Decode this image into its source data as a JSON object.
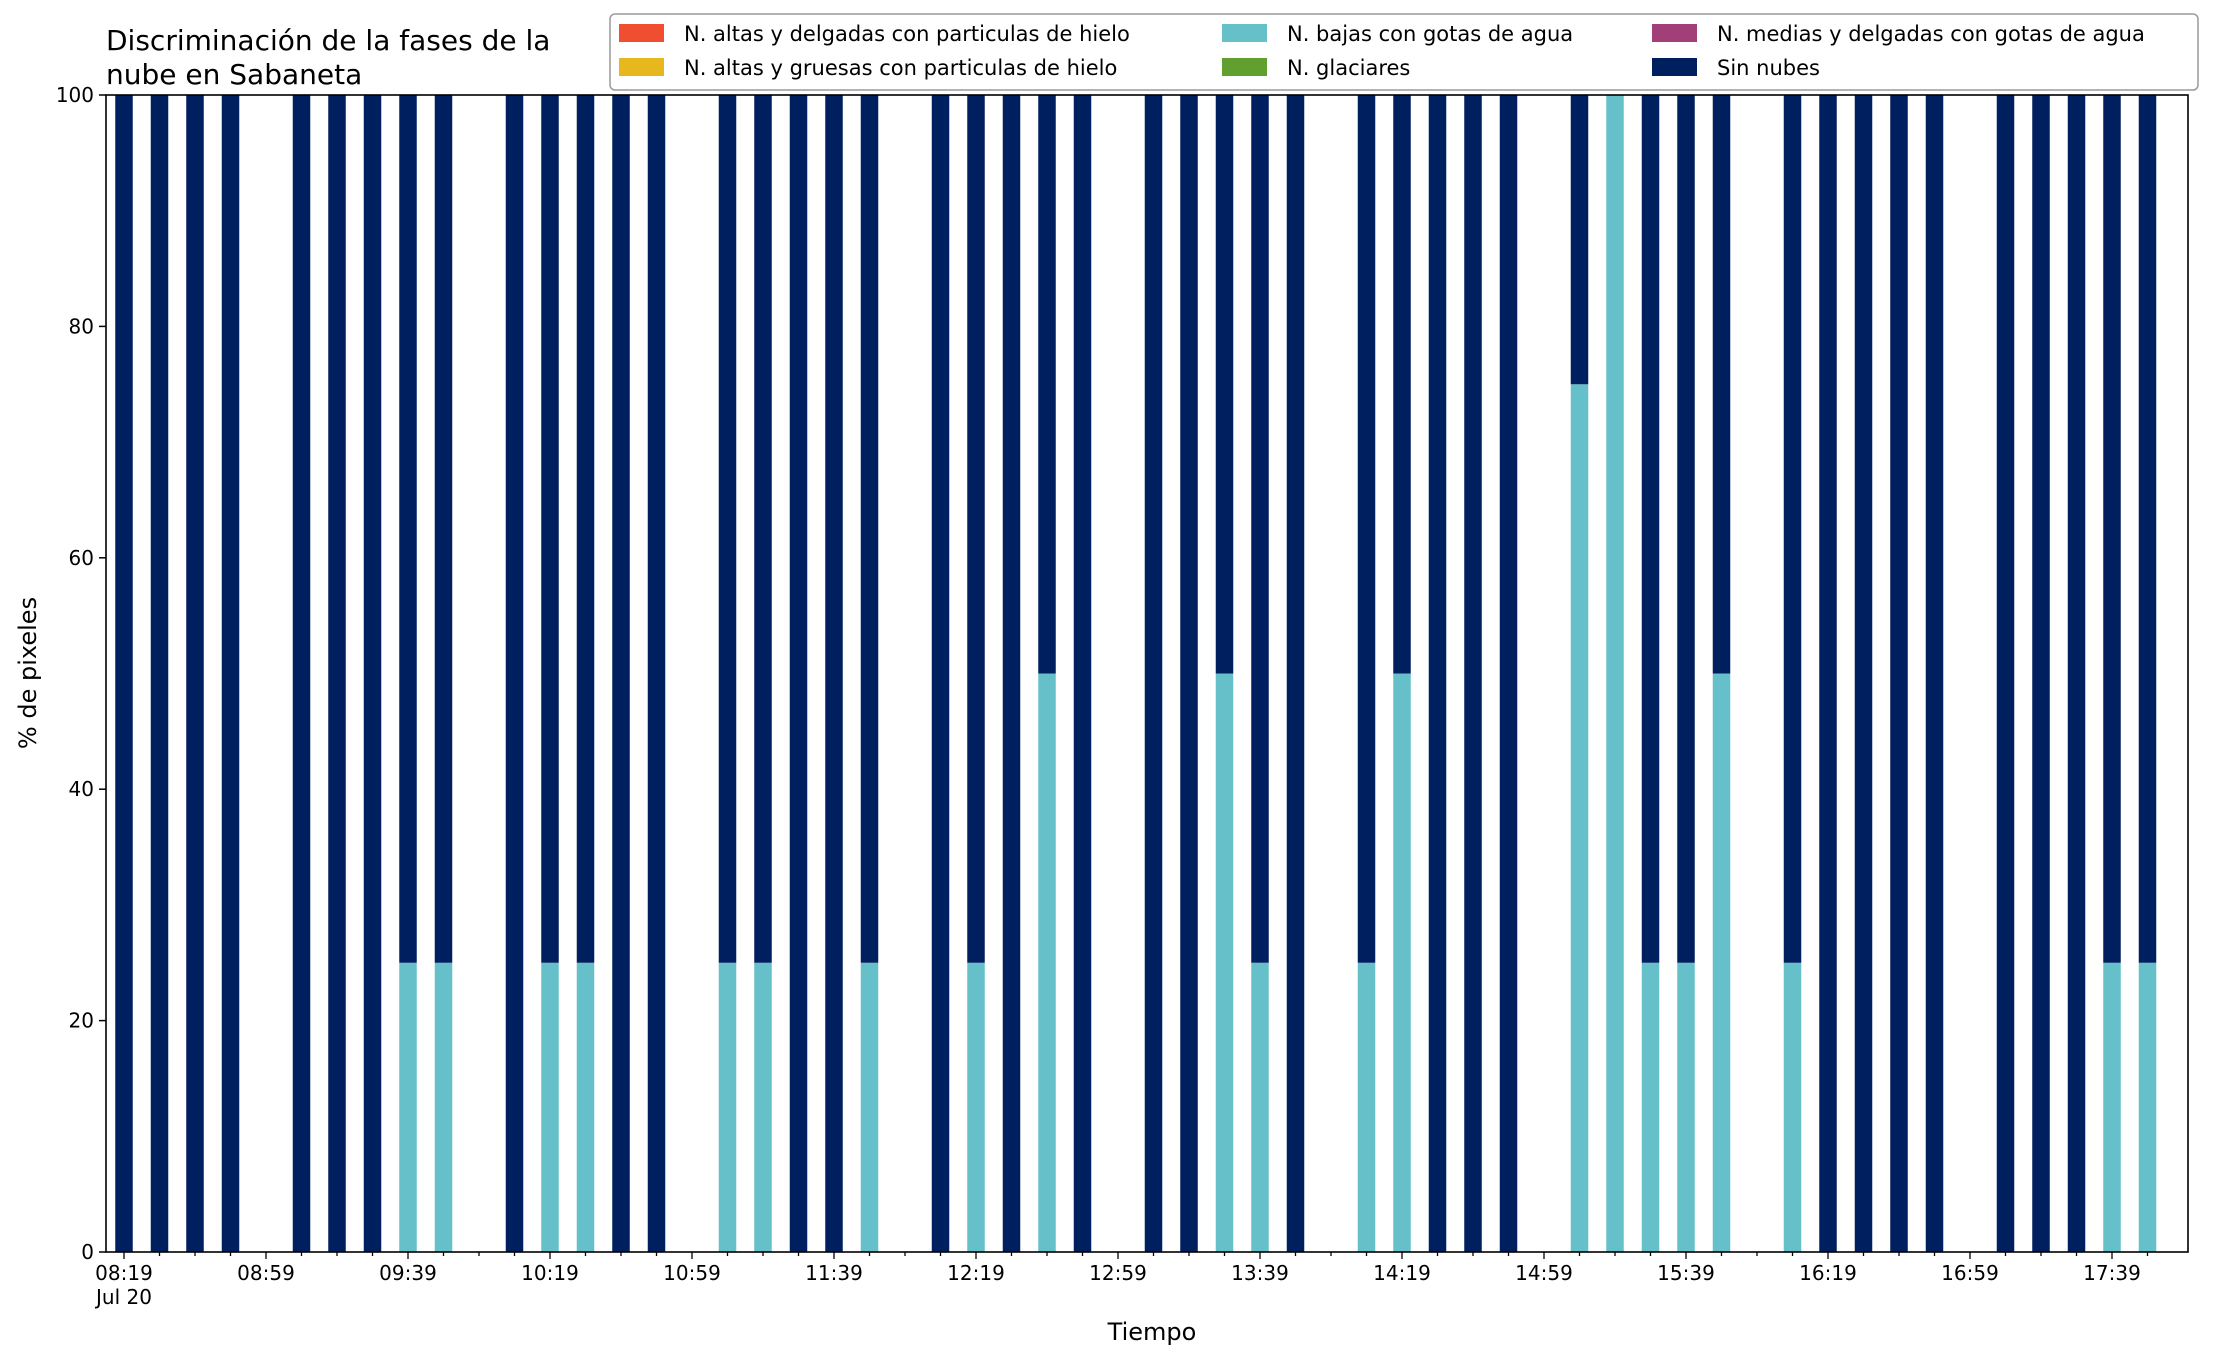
{
  "chart_data": {
    "type": "bar",
    "stacked": true,
    "title_line1": "Discriminación de la fases de la",
    "title_line2": "nube en Sabaneta",
    "xlabel": "Tiempo",
    "ylabel": "% de pixeles",
    "ylim": [
      0,
      100
    ],
    "yticks": [
      "0",
      "20",
      "40",
      "60",
      "80",
      "100"
    ],
    "grid": false,
    "legend_position": "top-right",
    "x_start": "08:19",
    "slot_minutes": 10,
    "slot_count": 58,
    "xtick_labels": [
      {
        "slot": 0,
        "label": "08:19",
        "sub": "Jul 20"
      },
      {
        "slot": 4,
        "label": "08:59"
      },
      {
        "slot": 8,
        "label": "09:39"
      },
      {
        "slot": 12,
        "label": "10:19"
      },
      {
        "slot": 16,
        "label": "10:59"
      },
      {
        "slot": 20,
        "label": "11:39"
      },
      {
        "slot": 24,
        "label": "12:19"
      },
      {
        "slot": 28,
        "label": "12:59"
      },
      {
        "slot": 32,
        "label": "13:39"
      },
      {
        "slot": 36,
        "label": "14:19"
      },
      {
        "slot": 40,
        "label": "14:59"
      },
      {
        "slot": 44,
        "label": "15:39"
      },
      {
        "slot": 48,
        "label": "16:19"
      },
      {
        "slot": 52,
        "label": "16:59"
      },
      {
        "slot": 56,
        "label": "17:39"
      }
    ],
    "series": [
      {
        "name": "N. altas y delgadas con particulas de hielo",
        "color": "#f04e30"
      },
      {
        "name": "N. altas y gruesas con particulas de hielo",
        "color": "#e6b81e"
      },
      {
        "name": "N. bajas con gotas de agua",
        "color": "#65c0ca"
      },
      {
        "name": "N. glaciares",
        "color": "#61a02f"
      },
      {
        "name": "N. medias y delgadas con gotas de agua",
        "color": "#a23f78"
      },
      {
        "name": "Sin nubes",
        "color": "#001f5f"
      }
    ],
    "bars": [
      {
        "slot": 0,
        "bajas": 0,
        "sin_nubes": 100
      },
      {
        "slot": 1,
        "bajas": 0,
        "sin_nubes": 100
      },
      {
        "slot": 2,
        "bajas": 0,
        "sin_nubes": 100
      },
      {
        "slot": 3,
        "bajas": 0,
        "sin_nubes": 100
      },
      {
        "slot": 5,
        "bajas": 0,
        "sin_nubes": 100
      },
      {
        "slot": 6,
        "bajas": 0,
        "sin_nubes": 100
      },
      {
        "slot": 7,
        "bajas": 0,
        "sin_nubes": 100
      },
      {
        "slot": 8,
        "bajas": 25,
        "sin_nubes": 75
      },
      {
        "slot": 9,
        "bajas": 25,
        "sin_nubes": 75
      },
      {
        "slot": 11,
        "bajas": 0,
        "sin_nubes": 100
      },
      {
        "slot": 12,
        "bajas": 25,
        "sin_nubes": 75
      },
      {
        "slot": 13,
        "bajas": 25,
        "sin_nubes": 75
      },
      {
        "slot": 14,
        "bajas": 0,
        "sin_nubes": 100
      },
      {
        "slot": 15,
        "bajas": 0,
        "sin_nubes": 100
      },
      {
        "slot": 17,
        "bajas": 25,
        "sin_nubes": 75
      },
      {
        "slot": 18,
        "bajas": 25,
        "sin_nubes": 75
      },
      {
        "slot": 19,
        "bajas": 0,
        "sin_nubes": 100
      },
      {
        "slot": 20,
        "bajas": 0,
        "sin_nubes": 100
      },
      {
        "slot": 21,
        "bajas": 25,
        "sin_nubes": 75
      },
      {
        "slot": 23,
        "bajas": 0,
        "sin_nubes": 100
      },
      {
        "slot": 24,
        "bajas": 25,
        "sin_nubes": 75
      },
      {
        "slot": 25,
        "bajas": 0,
        "sin_nubes": 100
      },
      {
        "slot": 26,
        "bajas": 50,
        "sin_nubes": 50
      },
      {
        "slot": 27,
        "bajas": 0,
        "sin_nubes": 100
      },
      {
        "slot": 29,
        "bajas": 0,
        "sin_nubes": 100
      },
      {
        "slot": 30,
        "bajas": 0,
        "sin_nubes": 100
      },
      {
        "slot": 31,
        "bajas": 50,
        "sin_nubes": 50
      },
      {
        "slot": 32,
        "bajas": 25,
        "sin_nubes": 75
      },
      {
        "slot": 33,
        "bajas": 0,
        "sin_nubes": 100
      },
      {
        "slot": 35,
        "bajas": 25,
        "sin_nubes": 75
      },
      {
        "slot": 36,
        "bajas": 50,
        "sin_nubes": 50
      },
      {
        "slot": 37,
        "bajas": 0,
        "sin_nubes": 100
      },
      {
        "slot": 38,
        "bajas": 0,
        "sin_nubes": 100
      },
      {
        "slot": 39,
        "bajas": 0,
        "sin_nubes": 100
      },
      {
        "slot": 41,
        "bajas": 75,
        "sin_nubes": 25
      },
      {
        "slot": 42,
        "bajas": 100,
        "sin_nubes": 0
      },
      {
        "slot": 43,
        "bajas": 25,
        "sin_nubes": 75
      },
      {
        "slot": 44,
        "bajas": 25,
        "sin_nubes": 75
      },
      {
        "slot": 45,
        "bajas": 50,
        "sin_nubes": 50
      },
      {
        "slot": 47,
        "bajas": 25,
        "sin_nubes": 75
      },
      {
        "slot": 48,
        "bajas": 0,
        "sin_nubes": 100
      },
      {
        "slot": 49,
        "bajas": 0,
        "sin_nubes": 100
      },
      {
        "slot": 50,
        "bajas": 0,
        "sin_nubes": 100
      },
      {
        "slot": 51,
        "bajas": 0,
        "sin_nubes": 100
      },
      {
        "slot": 53,
        "bajas": 0,
        "sin_nubes": 100
      },
      {
        "slot": 54,
        "bajas": 0,
        "sin_nubes": 100
      },
      {
        "slot": 55,
        "bajas": 0,
        "sin_nubes": 100
      },
      {
        "slot": 56,
        "bajas": 25,
        "sin_nubes": 75
      },
      {
        "slot": 57,
        "bajas": 25,
        "sin_nubes": 75
      }
    ]
  }
}
